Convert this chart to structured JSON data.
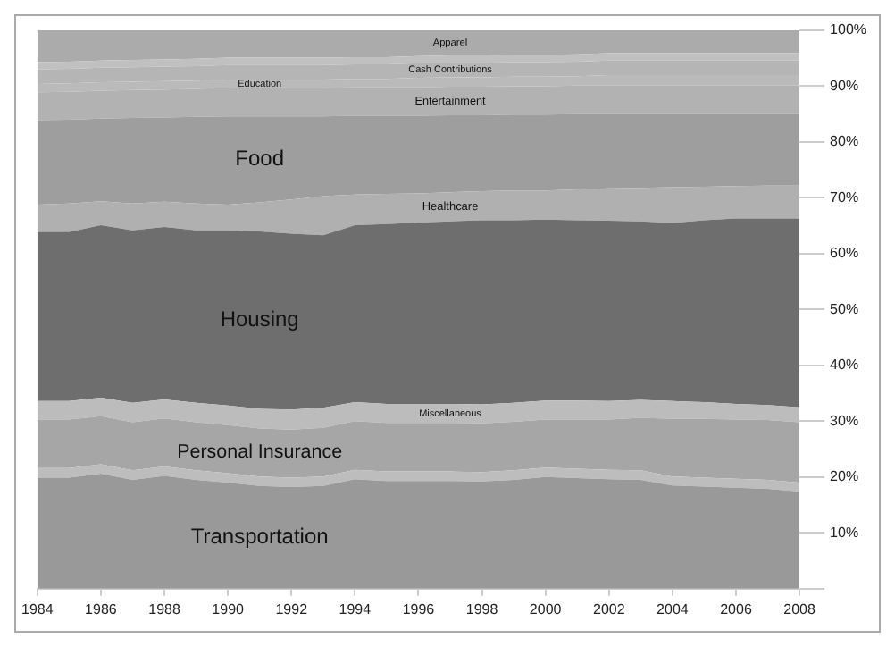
{
  "chart_data": {
    "type": "area",
    "stacked": true,
    "grid": false,
    "legend": false,
    "marker": "none",
    "x": [
      1984,
      1985,
      1986,
      1987,
      1988,
      1989,
      1990,
      1991,
      1992,
      1993,
      1994,
      1995,
      1996,
      1997,
      1998,
      1999,
      2000,
      2001,
      2002,
      2003,
      2004,
      2005,
      2006,
      2007,
      2008
    ],
    "xlim": [
      1984,
      2008
    ],
    "xticks": [
      1984,
      1986,
      1988,
      1990,
      1992,
      1994,
      1996,
      1998,
      2000,
      2002,
      2004,
      2006,
      2008
    ],
    "ylim": [
      0,
      100
    ],
    "yticks": [
      {
        "value": 0,
        "label": null
      },
      {
        "value": 10,
        "label": "10%"
      },
      {
        "value": 20,
        "label": "20%"
      },
      {
        "value": 30,
        "label": "30%"
      },
      {
        "value": 40,
        "label": "40%"
      },
      {
        "value": 50,
        "label": "50%"
      },
      {
        "value": 60,
        "label": "60%"
      },
      {
        "value": 70,
        "label": "70%"
      },
      {
        "value": 80,
        "label": "80%"
      },
      {
        "value": 90,
        "label": "90%"
      },
      {
        "value": 100,
        "label": "100%"
      }
    ],
    "series": [
      {
        "name": "Transportation",
        "color": "#999999",
        "values": [
          19.9,
          19.9,
          20.6,
          19.5,
          20.2,
          19.5,
          19.0,
          18.4,
          18.2,
          18.4,
          19.6,
          19.3,
          19.3,
          19.3,
          19.2,
          19.5,
          20.0,
          19.8,
          19.6,
          19.5,
          18.5,
          18.3,
          18.1,
          17.9,
          17.4
        ]
      },
      {
        "color": "#bdbdbd",
        "values": [
          1.7,
          1.7,
          1.7,
          1.7,
          1.7,
          1.7,
          1.7,
          1.7,
          1.7,
          1.7,
          1.7,
          1.7,
          1.7,
          1.7,
          1.7,
          1.7,
          1.7,
          1.7,
          1.7,
          1.7,
          1.6,
          1.6,
          1.6,
          1.6,
          1.6
        ]
      },
      {
        "name": "Personal Insurance",
        "color": "#a6a6a6",
        "values": [
          8.7,
          8.7,
          8.6,
          8.6,
          8.6,
          8.6,
          8.6,
          8.6,
          8.6,
          8.7,
          8.7,
          8.7,
          8.7,
          8.7,
          8.7,
          8.7,
          8.6,
          8.8,
          9.0,
          9.4,
          10.3,
          10.5,
          10.6,
          10.7,
          10.8
        ]
      },
      {
        "name": "Miscellaneous",
        "color": "#bcbcbc",
        "values": [
          3.3,
          3.3,
          3.3,
          3.5,
          3.4,
          3.5,
          3.5,
          3.5,
          3.6,
          3.6,
          3.4,
          3.4,
          3.4,
          3.4,
          3.4,
          3.4,
          3.4,
          3.4,
          3.3,
          3.2,
          3.2,
          3.0,
          2.8,
          2.7,
          2.7
        ]
      },
      {
        "name": "Housing",
        "color": "#6e6e6e",
        "values": [
          30.3,
          30.3,
          30.9,
          30.9,
          30.9,
          30.9,
          31.4,
          31.8,
          31.5,
          30.9,
          31.7,
          32.2,
          32.5,
          32.7,
          33.0,
          32.7,
          32.4,
          32.3,
          32.3,
          32.0,
          31.9,
          32.6,
          33.2,
          33.4,
          33.8
        ]
      },
      {
        "name": "Healthcare",
        "color": "#b0b0b0",
        "values": [
          4.9,
          5.1,
          4.3,
          4.8,
          4.5,
          4.8,
          4.6,
          5.2,
          6.1,
          7.0,
          5.5,
          5.4,
          5.2,
          5.2,
          5.2,
          5.3,
          5.2,
          5.5,
          5.8,
          6.0,
          6.4,
          6.0,
          5.8,
          5.9,
          5.9
        ]
      },
      {
        "name": "Food",
        "color": "#9e9e9e",
        "values": [
          15.1,
          15.0,
          14.8,
          15.3,
          15.1,
          15.5,
          15.8,
          15.4,
          14.9,
          14.3,
          14.1,
          14.0,
          13.9,
          13.8,
          13.6,
          13.6,
          13.6,
          13.5,
          13.3,
          13.2,
          13.1,
          13.0,
          12.9,
          12.8,
          12.8
        ]
      },
      {
        "name": "Entertainment",
        "color": "#b2b2b2",
        "values": [
          5.0,
          5.0,
          5.0,
          5.0,
          5.0,
          5.0,
          5.1,
          5.1,
          5.1,
          5.1,
          5.1,
          5.1,
          5.1,
          5.1,
          5.1,
          5.1,
          5.1,
          5.1,
          5.1,
          5.1,
          5.1,
          5.1,
          5.1,
          5.1,
          5.1
        ]
      },
      {
        "name": "Education",
        "color": "#bababa",
        "values": [
          1.5,
          1.5,
          1.5,
          1.5,
          1.5,
          1.5,
          1.5,
          1.5,
          1.5,
          1.5,
          1.5,
          1.5,
          1.7,
          1.7,
          1.7,
          1.7,
          1.7,
          1.7,
          1.9,
          1.9,
          1.9,
          1.9,
          1.9,
          1.9,
          1.9
        ]
      },
      {
        "name": "Cash Contributions",
        "color": "#b5b5b5",
        "values": [
          2.6,
          2.6,
          2.6,
          2.6,
          2.6,
          2.6,
          2.6,
          2.6,
          2.6,
          2.6,
          2.6,
          2.6,
          2.6,
          2.6,
          2.6,
          2.6,
          2.6,
          2.6,
          2.6,
          2.6,
          2.6,
          2.6,
          2.6,
          2.6,
          2.6
        ]
      },
      {
        "color": "#c0c0c0",
        "values": [
          1.3,
          1.3,
          1.3,
          1.3,
          1.3,
          1.3,
          1.3,
          1.3,
          1.3,
          1.3,
          1.3,
          1.3,
          1.3,
          1.3,
          1.3,
          1.3,
          1.3,
          1.3,
          1.3,
          1.3,
          1.3,
          1.3,
          1.3,
          1.3,
          1.3
        ]
      },
      {
        "name": "Apparel",
        "color": "#ababab",
        "values": [
          5.7,
          5.6,
          5.4,
          5.3,
          5.2,
          5.1,
          4.9,
          4.9,
          4.9,
          4.9,
          4.8,
          4.8,
          4.6,
          4.5,
          4.5,
          4.4,
          4.4,
          4.3,
          4.1,
          4.1,
          4.1,
          4.1,
          4.1,
          4.1,
          4.1
        ]
      }
    ]
  }
}
